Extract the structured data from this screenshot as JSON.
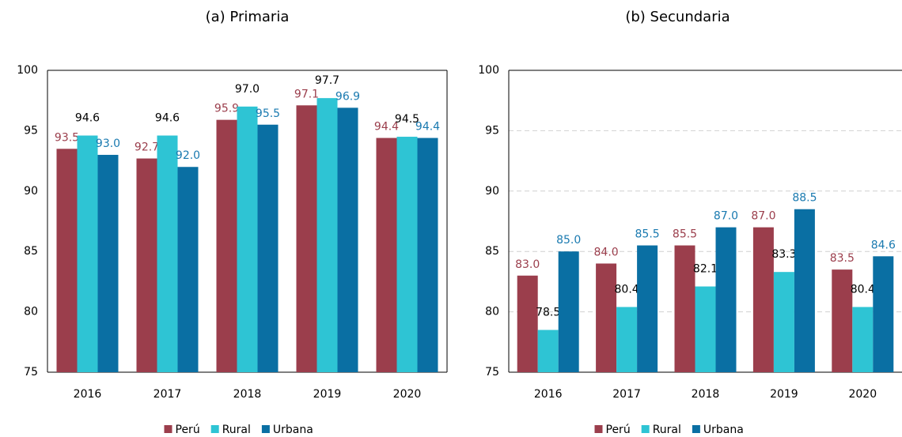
{
  "chart_data": [
    {
      "type": "bar",
      "title": "(a) Primaria",
      "categories": [
        "2016",
        "2017",
        "2018",
        "2019",
        "2020"
      ],
      "series": [
        {
          "name": "Perú",
          "color": "#9b3e4c",
          "label_color": "#9b3e4c",
          "values": [
            93.5,
            92.7,
            95.9,
            97.1,
            94.4
          ],
          "value_labels": [
            "93.5",
            "92.7",
            "95.9",
            "97.1",
            "94.4"
          ]
        },
        {
          "name": "Rural",
          "color": "#2ec4d4",
          "label_color": "#000000",
          "values": [
            94.6,
            94.6,
            97.0,
            97.7,
            94.5
          ],
          "value_labels": [
            "94.6",
            "94.6",
            "97.0",
            "97.7",
            "94.5"
          ]
        },
        {
          "name": "Urbana",
          "color": "#0a6fa3",
          "label_color": "#1a7ab0",
          "values": [
            93.0,
            92.0,
            95.5,
            96.9,
            94.4
          ],
          "value_labels": [
            "93.0",
            "92.0",
            "95.5",
            "96.9",
            "94.4"
          ]
        }
      ],
      "ylim": [
        75,
        100
      ],
      "yticks": [
        75,
        80,
        85,
        90,
        95,
        100
      ],
      "grid": false,
      "legend": "bottom"
    },
    {
      "type": "bar",
      "title": "(b) Secundaria",
      "categories": [
        "2016",
        "2017",
        "2018",
        "2019",
        "2020"
      ],
      "series": [
        {
          "name": "Perú",
          "color": "#9b3e4c",
          "label_color": "#9b3e4c",
          "values": [
            83.0,
            84.0,
            85.5,
            87.0,
            83.5
          ],
          "value_labels": [
            "83.0",
            "84.0",
            "85.5",
            "87.0",
            "83.5"
          ]
        },
        {
          "name": "Rural",
          "color": "#2ec4d4",
          "label_color": "#000000",
          "values": [
            78.5,
            80.4,
            82.1,
            83.3,
            80.4
          ],
          "value_labels": [
            "78.5",
            "80.4",
            "82.1",
            "83.3",
            "80.4"
          ]
        },
        {
          "name": "Urbana",
          "color": "#0a6fa3",
          "label_color": "#1a7ab0",
          "values": [
            85.0,
            85.5,
            87.0,
            88.5,
            84.6
          ],
          "value_labels": [
            "85.0",
            "85.5",
            "87.0",
            "88.5",
            "84.6"
          ]
        }
      ],
      "ylim": [
        75,
        100
      ],
      "yticks": [
        75,
        80,
        85,
        90,
        95,
        100
      ],
      "grid": true,
      "legend": "bottom"
    }
  ]
}
